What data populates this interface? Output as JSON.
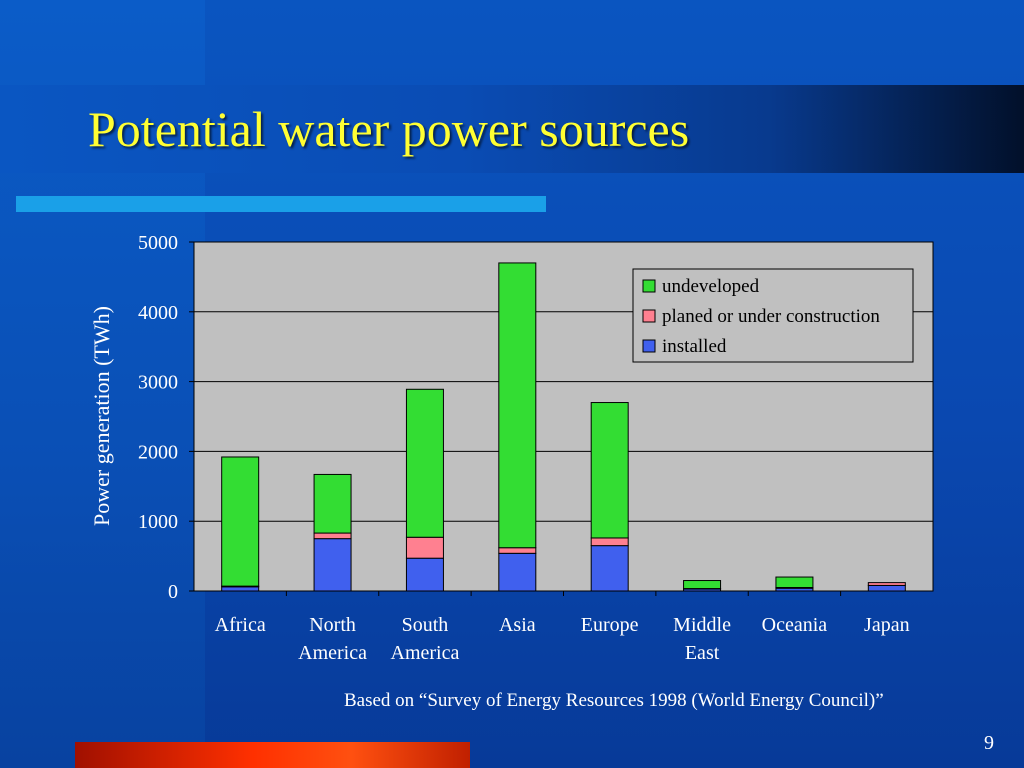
{
  "slide": {
    "title": "Potential water power sources",
    "caption": "Based on “Survey of Energy Resources 1998 (World Energy Council)”",
    "page_number": "9"
  },
  "colors": {
    "title": "#ffff33",
    "accent_bar": "#1aa0e8",
    "bottom_bar": "#ff3000",
    "plot_background": "#c0c0c0"
  },
  "chart_data": {
    "type": "bar",
    "stacked": true,
    "ylabel": "Power generation (TWh)",
    "ylim": [
      0,
      5000
    ],
    "yticks": [
      "0",
      "1000",
      "2000",
      "3000",
      "4000",
      "5000"
    ],
    "grid": true,
    "legend_position": "top-right",
    "categories": [
      [
        "Africa"
      ],
      [
        "North",
        "America"
      ],
      [
        "South",
        "America"
      ],
      [
        "Asia"
      ],
      [
        "Europe"
      ],
      [
        "Middle",
        "East"
      ],
      [
        "Oceania"
      ],
      [
        "Japan"
      ]
    ],
    "series": [
      {
        "name": "installed",
        "color": "#4060ee",
        "values": [
          60,
          750,
          470,
          540,
          650,
          30,
          40,
          80
        ]
      },
      {
        "name": "planed or under construction",
        "color": "#ff8090",
        "values": [
          10,
          80,
          300,
          80,
          110,
          5,
          10,
          40
        ]
      },
      {
        "name": "undeveloped",
        "color": "#33dd33",
        "values": [
          1850,
          840,
          2120,
          4080,
          1940,
          115,
          150,
          0
        ]
      }
    ],
    "legend_order": [
      "undeveloped",
      "planed or under construction",
      "installed"
    ]
  }
}
